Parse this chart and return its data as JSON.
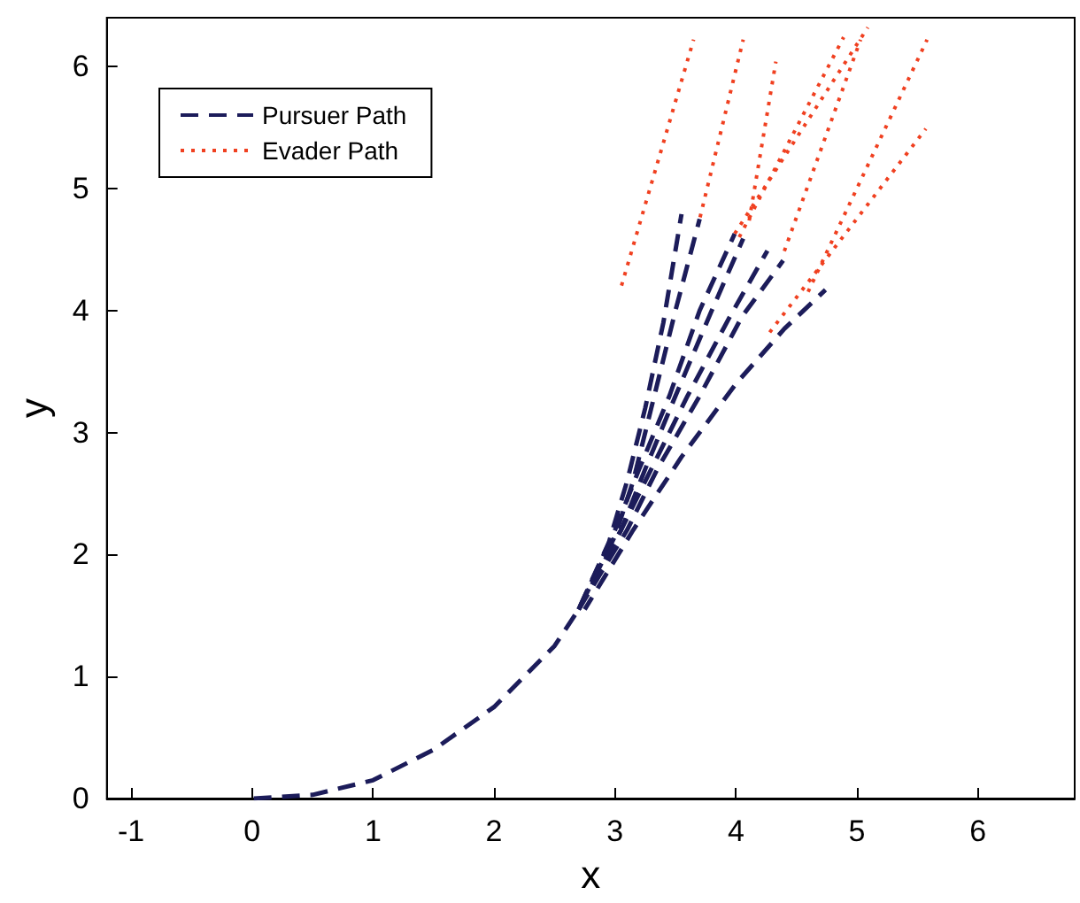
{
  "chart_data": {
    "type": "line",
    "xlabel": "x",
    "ylabel": "y",
    "xlim": [
      -1.2,
      6.8
    ],
    "ylim": [
      0,
      6.4
    ],
    "xticks": [
      -1,
      0,
      1,
      2,
      3,
      4,
      5,
      6
    ],
    "yticks": [
      0,
      1,
      2,
      3,
      4,
      5,
      6
    ],
    "grid": false,
    "legend": "top left",
    "marker": "none",
    "series": [
      {
        "name": "Pursuer Path",
        "color": "#1c1c5a",
        "line_style": "dashed",
        "x": [
          0,
          0.5,
          1,
          1.5,
          2,
          2.5,
          2.7,
          2.95,
          3.1,
          3.25,
          3.4,
          3.55
        ],
        "values": [
          0,
          0.03,
          0.15,
          0.4,
          0.75,
          1.25,
          1.55,
          2.1,
          2.6,
          3.2,
          3.9,
          4.79
        ]
      },
      {
        "color": "#1c1c5a",
        "line_style": "dashed",
        "x": [
          2.7,
          3.0,
          3.15,
          3.3,
          3.5,
          3.7
        ],
        "values": [
          1.55,
          2.15,
          2.6,
          3.2,
          4.0,
          4.75
        ]
      },
      {
        "color": "#1c1c5a",
        "line_style": "dashed",
        "x": [
          2.7,
          3.0,
          3.2,
          3.45,
          3.7,
          3.99
        ],
        "values": [
          1.55,
          2.2,
          2.7,
          3.3,
          4.0,
          4.63
        ]
      },
      {
        "color": "#1c1c5a",
        "line_style": "dashed",
        "x": [
          2.7,
          3.05,
          3.25,
          3.5,
          3.8,
          4.06
        ],
        "values": [
          1.55,
          2.2,
          2.7,
          3.3,
          4.0,
          4.59
        ]
      },
      {
        "color": "#1c1c5a",
        "line_style": "dashed",
        "x": [
          2.7,
          3.05,
          3.3,
          3.6,
          3.95,
          4.26
        ],
        "values": [
          1.55,
          2.2,
          2.7,
          3.3,
          3.95,
          4.49
        ]
      },
      {
        "color": "#1c1c5a",
        "line_style": "dashed",
        "x": [
          2.7,
          3.1,
          3.35,
          3.7,
          4.05,
          4.39
        ],
        "values": [
          1.55,
          2.2,
          2.7,
          3.3,
          3.95,
          4.41
        ]
      },
      {
        "color": "#1c1c5a",
        "line_style": "dashed",
        "x": [
          2.75,
          3.15,
          3.55,
          4.0,
          4.4,
          4.74
        ],
        "values": [
          1.55,
          2.2,
          2.8,
          3.4,
          3.85,
          4.17
        ]
      },
      {
        "name": "Evader Path",
        "color": "#f04020",
        "line_style": "dotted",
        "x": [
          3.05,
          3.65
        ],
        "values": [
          4.19,
          6.22
        ]
      },
      {
        "color": "#f04020",
        "line_style": "dotted",
        "x": [
          3.7,
          4.06
        ],
        "values": [
          4.75,
          6.22
        ]
      },
      {
        "color": "#f04020",
        "line_style": "dotted",
        "x": [
          4.1,
          4.33
        ],
        "values": [
          4.68,
          6.04
        ]
      },
      {
        "color": "#f04020",
        "line_style": "dotted",
        "x": [
          4.0,
          4.89
        ],
        "values": [
          4.55,
          6.24
        ]
      },
      {
        "color": "#f04020",
        "line_style": "dotted",
        "x": [
          3.99,
          5.09
        ],
        "values": [
          4.63,
          6.32
        ]
      },
      {
        "color": "#f04020",
        "line_style": "dotted",
        "x": [
          4.39,
          5.03
        ],
        "values": [
          4.46,
          6.22
        ]
      },
      {
        "color": "#f04020",
        "line_style": "dotted",
        "x": [
          4.59,
          5.58
        ],
        "values": [
          4.14,
          6.22
        ]
      },
      {
        "color": "#f04020",
        "line_style": "dotted",
        "x": [
          4.27,
          5.57
        ],
        "values": [
          3.81,
          5.49
        ]
      }
    ]
  }
}
